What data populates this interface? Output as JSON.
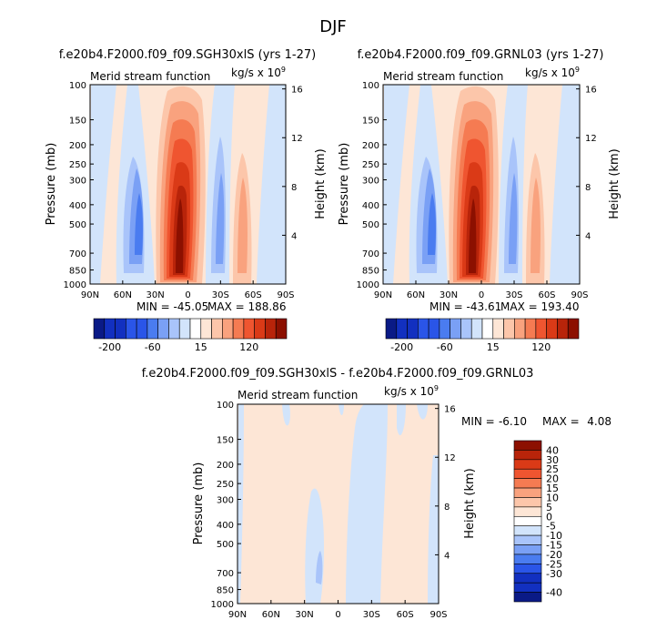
{
  "page": {
    "title": "DJF"
  },
  "palette": {
    "coolest": "#0a1a86",
    "c1": "#1230c0",
    "c2": "#2a55e8",
    "c3": "#4a7cf0",
    "c4": "#7aa0f5",
    "c5": "#a9c4fa",
    "c6": "#d2e4fb",
    "w0": "#fde6d6",
    "w1": "#fcc6aa",
    "w2": "#f9a27e",
    "w3": "#f57b52",
    "w4": "#ef5530",
    "w5": "#da3a17",
    "w6": "#b8240a",
    "w7": "#8c1000"
  },
  "chart_data": [
    {
      "type": "heatmap",
      "id": "panel-left",
      "title": "f.e20b4.F2000.f09_f09.SGH30xlS (yrs 1-27)",
      "subtitle": "Merid stream function",
      "units": "kg/s x 10",
      "units_exp": "9",
      "ylabel": "Pressure (mb)",
      "ylabel_right": "Height (km)",
      "xticks": [
        "90N",
        "60N",
        "30N",
        "0",
        "30S",
        "60S",
        "90S"
      ],
      "yticks": [
        "100",
        "150",
        "200",
        "250",
        "300",
        "400",
        "500",
        "700",
        "850",
        "1000"
      ],
      "yticks_right": [
        "16",
        "12",
        "8",
        "4"
      ],
      "min_label": "MIN = -45.05",
      "max_label": "MAX = 188.86",
      "colorbar_ticks": [
        "-200",
        "-60",
        "15",
        "120"
      ]
    },
    {
      "type": "heatmap",
      "id": "panel-right",
      "title": "f.e20b4.F2000.f09_f09.GRNL03 (yrs 1-27)",
      "subtitle": "Merid stream function",
      "units": "kg/s x 10",
      "units_exp": "9",
      "ylabel": "Pressure (mb)",
      "ylabel_right": "Height (km)",
      "xticks": [
        "90N",
        "60N",
        "30N",
        "0",
        "30S",
        "60S",
        "90S"
      ],
      "yticks": [
        "100",
        "150",
        "200",
        "250",
        "300",
        "400",
        "500",
        "700",
        "850",
        "1000"
      ],
      "yticks_right": [
        "16",
        "12",
        "8",
        "4"
      ],
      "min_label": "MIN = -43.61",
      "max_label": "MAX = 193.40",
      "colorbar_ticks": [
        "-200",
        "-60",
        "15",
        "120"
      ]
    },
    {
      "type": "heatmap",
      "id": "panel-diff",
      "title": "f.e20b4.F2000.f09_f09.SGH30xlS - f.e20b4.F2000.f09_f09.GRNL03",
      "subtitle": "Merid stream function",
      "units": "kg/s x 10",
      "units_exp": "9",
      "ylabel": "Pressure (mb)",
      "ylabel_right": "Height (km)",
      "xticks": [
        "90N",
        "60N",
        "30N",
        "0",
        "30S",
        "60S",
        "90S"
      ],
      "yticks": [
        "100",
        "150",
        "200",
        "250",
        "300",
        "400",
        "500",
        "700",
        "850",
        "1000"
      ],
      "yticks_right": [
        "16",
        "12",
        "8",
        "4"
      ],
      "min_label": "MIN =",
      "min_value": "-6.10",
      "max_label": "MAX =",
      "max_value": "4.08",
      "colorbar_ticks": [
        "40",
        "30",
        "25",
        "20",
        "15",
        "10",
        "5",
        "0",
        "-5",
        "-10",
        "-15",
        "-20",
        "-25",
        "-30",
        "-40"
      ]
    }
  ]
}
